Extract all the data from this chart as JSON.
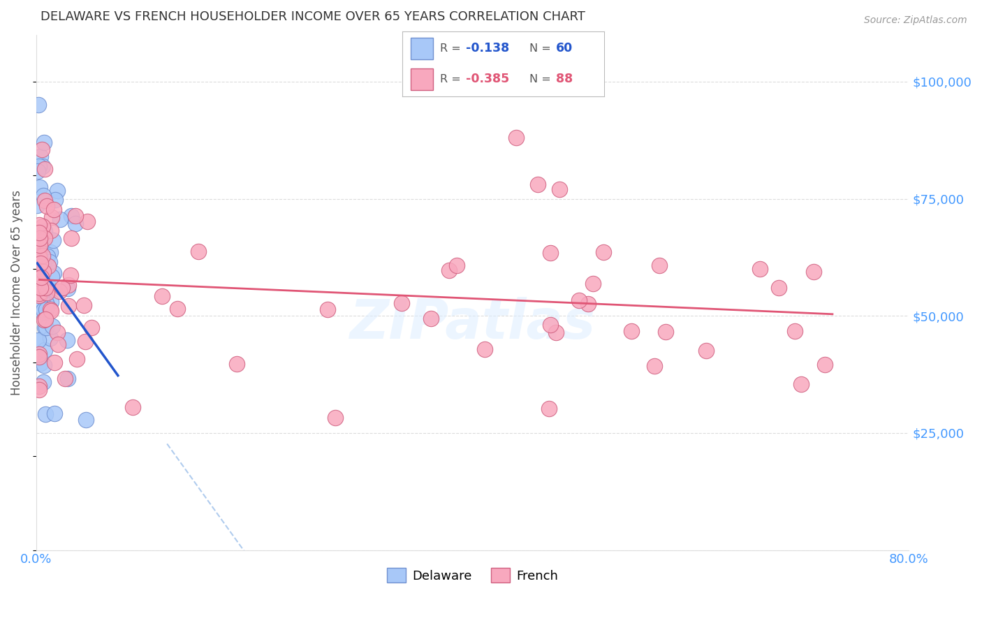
{
  "title": "DELAWARE VS FRENCH HOUSEHOLDER INCOME OVER 65 YEARS CORRELATION CHART",
  "source": "Source: ZipAtlas.com",
  "ylabel": "Householder Income Over 65 years",
  "xlim": [
    0.0,
    0.8
  ],
  "ylim": [
    0,
    110000
  ],
  "yticks": [
    0,
    25000,
    50000,
    75000,
    100000
  ],
  "ytick_labels": [
    "",
    "$25,000",
    "$50,000",
    "$75,000",
    "$100,000"
  ],
  "xticks": [
    0.0,
    0.1,
    0.2,
    0.3,
    0.4,
    0.5,
    0.6,
    0.7,
    0.8
  ],
  "xtick_labels": [
    "0.0%",
    "",
    "",
    "",
    "",
    "",
    "",
    "",
    "80.0%"
  ],
  "delaware_color": "#a8c8f8",
  "french_color": "#f8a8be",
  "delaware_edge": "#7090d0",
  "french_edge": "#d06080",
  "trend_delaware_color": "#2255cc",
  "trend_french_color": "#e05575",
  "trend_dashed_color": "#b0ccee",
  "background_color": "#ffffff",
  "grid_color": "#cccccc",
  "tick_color": "#4499ff",
  "watermark": "ZIPatlas",
  "legend_r_del": "-0.138",
  "legend_n_del": "60",
  "legend_r_fre": "-0.385",
  "legend_n_fre": "88",
  "del_trend_x0": 0.001,
  "del_trend_x1": 0.075,
  "del_trend_y0": 61000,
  "del_trend_y1": 40000,
  "fre_trend_x0": 0.003,
  "fre_trend_x1": 0.73,
  "fre_trend_y0": 61000,
  "fre_trend_y1": 40000,
  "dash_trend_x0": 0.12,
  "dash_trend_x1": 0.78,
  "dash_trend_y0": 36000,
  "dash_trend_y1": 4000
}
